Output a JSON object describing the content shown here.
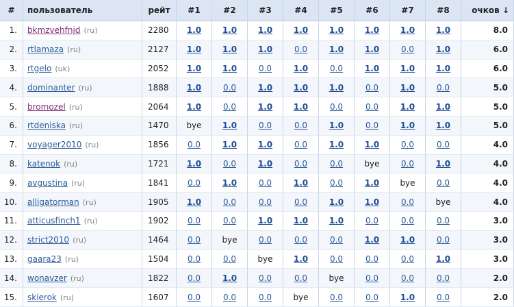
{
  "headers": {
    "num": "#",
    "user": "пользователь",
    "rating": "рейт",
    "rounds": [
      "#1",
      "#2",
      "#3",
      "#4",
      "#5",
      "#6",
      "#7",
      "#8"
    ],
    "score": "очков ↓"
  },
  "rows": [
    {
      "n": "1.",
      "name": "bkmzvehfnjd",
      "cc": "(ru)",
      "rating": "2280",
      "res": [
        "1.0",
        "1.0",
        "1.0",
        "1.0",
        "1.0",
        "1.0",
        "1.0",
        "1.0"
      ],
      "score": "8.0"
    },
    {
      "n": "2.",
      "name": "rtlamaza",
      "cc": "(ru)",
      "rating": "2127",
      "res": [
        "1.0",
        "1.0",
        "1.0",
        "0.0",
        "1.0",
        "1.0",
        "0.0",
        "1.0"
      ],
      "score": "6.0"
    },
    {
      "n": "3.",
      "name": "rtgelo",
      "cc": "(uk)",
      "rating": "2052",
      "res": [
        "1.0",
        "1.0",
        "0.0",
        "1.0",
        "0.0",
        "1.0",
        "1.0",
        "1.0"
      ],
      "score": "6.0"
    },
    {
      "n": "4.",
      "name": "dominanter",
      "cc": "(ru)",
      "rating": "1888",
      "res": [
        "1.0",
        "0.0",
        "1.0",
        "1.0",
        "1.0",
        "0.0",
        "1.0",
        "0.0"
      ],
      "score": "5.0"
    },
    {
      "n": "5.",
      "name": "bromozel",
      "cc": "(ru)",
      "rating": "2064",
      "res": [
        "1.0",
        "0.0",
        "1.0",
        "1.0",
        "0.0",
        "0.0",
        "1.0",
        "1.0"
      ],
      "score": "5.0"
    },
    {
      "n": "6.",
      "name": "rtdeniska",
      "cc": "(ru)",
      "rating": "1470",
      "res": [
        "bye",
        "1.0",
        "0.0",
        "0.0",
        "1.0",
        "0.0",
        "1.0",
        "1.0"
      ],
      "score": "5.0"
    },
    {
      "n": "7.",
      "name": "voyager2010",
      "cc": "(ru)",
      "rating": "1856",
      "res": [
        "0.0",
        "1.0",
        "1.0",
        "0.0",
        "1.0",
        "1.0",
        "0.0",
        "0.0"
      ],
      "score": "4.0"
    },
    {
      "n": "8.",
      "name": "katenok",
      "cc": "(ru)",
      "rating": "1721",
      "res": [
        "1.0",
        "0.0",
        "1.0",
        "0.0",
        "0.0",
        "bye",
        "0.0",
        "1.0"
      ],
      "score": "4.0"
    },
    {
      "n": "9.",
      "name": "avgustina",
      "cc": "(ru)",
      "rating": "1841",
      "res": [
        "0.0",
        "1.0",
        "0.0",
        "1.0",
        "0.0",
        "1.0",
        "bye",
        "0.0"
      ],
      "score": "4.0"
    },
    {
      "n": "10.",
      "name": "alligatorman",
      "cc": "(ru)",
      "rating": "1905",
      "res": [
        "1.0",
        "0.0",
        "0.0",
        "0.0",
        "1.0",
        "1.0",
        "0.0",
        "bye"
      ],
      "score": "4.0"
    },
    {
      "n": "11.",
      "name": "atticusfinch1",
      "cc": "(ru)",
      "rating": "1902",
      "res": [
        "0.0",
        "0.0",
        "1.0",
        "1.0",
        "1.0",
        "0.0",
        "0.0",
        "0.0"
      ],
      "score": "3.0"
    },
    {
      "n": "12.",
      "name": "strict2010",
      "cc": "(ru)",
      "rating": "1464",
      "res": [
        "0.0",
        "bye",
        "0.0",
        "0.0",
        "0.0",
        "1.0",
        "1.0",
        "0.0"
      ],
      "score": "3.0"
    },
    {
      "n": "13.",
      "name": "gaara23",
      "cc": "(ru)",
      "rating": "1504",
      "res": [
        "0.0",
        "0.0",
        "bye",
        "1.0",
        "0.0",
        "0.0",
        "0.0",
        "1.0"
      ],
      "score": "3.0"
    },
    {
      "n": "14.",
      "name": "wonavzer",
      "cc": "(ru)",
      "rating": "1822",
      "res": [
        "0.0",
        "1.0",
        "0.0",
        "0.0",
        "bye",
        "0.0",
        "0.0",
        "0.0"
      ],
      "score": "2.0"
    },
    {
      "n": "15.",
      "name": "skierok",
      "cc": "(ru)",
      "rating": "1607",
      "res": [
        "0.0",
        "0.0",
        "0.0",
        "bye",
        "0.0",
        "0.0",
        "1.0",
        "0.0"
      ],
      "score": "2.0"
    }
  ]
}
